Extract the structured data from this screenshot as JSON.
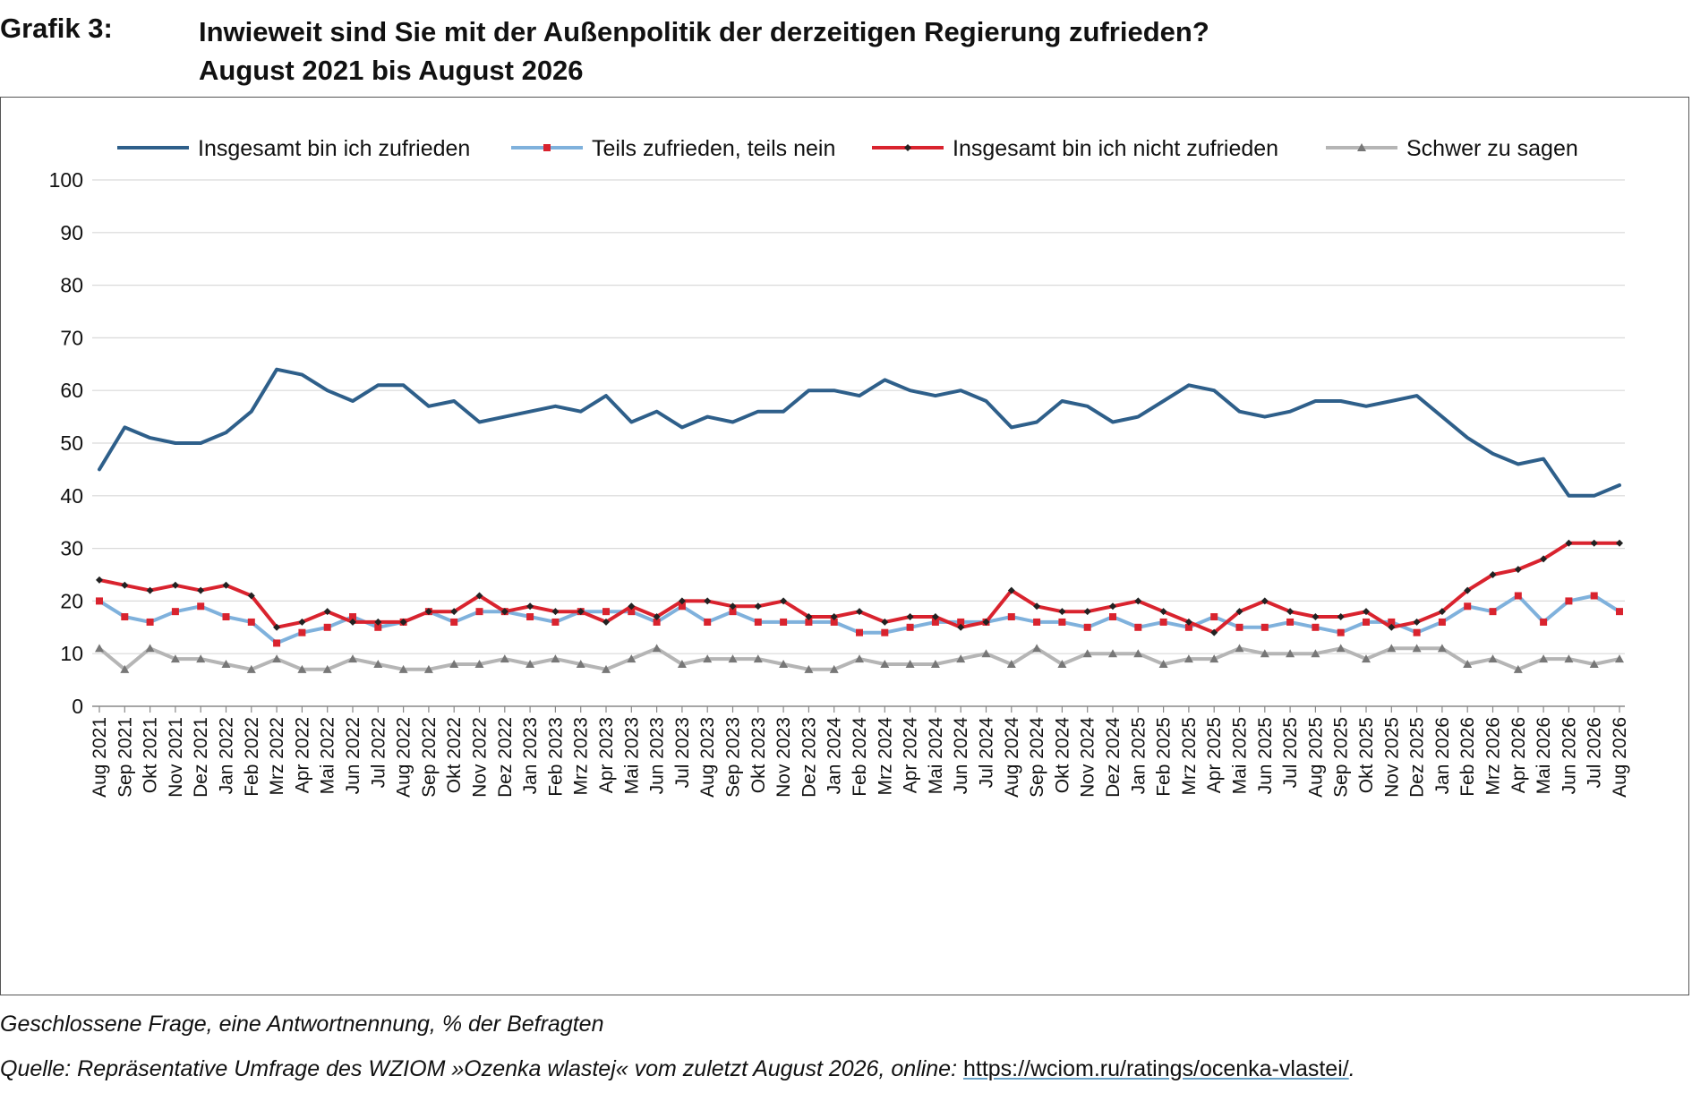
{
  "header": {
    "label": "Grafik 3:",
    "title_line1": "Inwieweit sind Sie mit der Außenpolitik der derzeitigen Regierung zufrieden?",
    "title_line2": "August 2021 bis August 2026"
  },
  "footnote": {
    "note": "Geschlossene Frage, eine Antwortnennung, % der Befragten",
    "source_prefix": "Quelle: Repräsentative Umfrage des WZIOM »Ozenka wlastej« vom zuletzt August 2026, online: ",
    "source_link": "https://wciom.ru/ratings/ocenka-vlastei/",
    "source_suffix": "."
  },
  "chart_data": {
    "type": "line",
    "title": "",
    "xlabel": "",
    "ylabel": "",
    "ylim": [
      0,
      100
    ],
    "yticks": [
      0,
      10,
      20,
      30,
      40,
      50,
      60,
      70,
      80,
      90,
      100
    ],
    "grid": true,
    "legend_position": "top",
    "categories": [
      "Aug 2021",
      "Sep 2021",
      "Okt 2021",
      "Nov 2021",
      "Dez 2021",
      "Jan 2022",
      "Feb 2022",
      "Mrz 2022",
      "Apr 2022",
      "Mai 2022",
      "Jun 2022",
      "Jul 2022",
      "Aug 2022",
      "Sep 2022",
      "Okt 2022",
      "Nov 2022",
      "Dez 2022",
      "Jan 2023",
      "Feb 2023",
      "Mrz 2023",
      "Apr 2023",
      "Mai 2023",
      "Jun 2023",
      "Jul 2023",
      "Aug 2023",
      "Sep 2023",
      "Okt 2023",
      "Nov 2023",
      "Dez 2023",
      "Jan 2024",
      "Feb 2024",
      "Mrz 2024",
      "Apr 2024",
      "Mai 2024",
      "Jun 2024",
      "Jul 2024",
      "Aug 2024",
      "Sep 2024",
      "Okt 2024",
      "Nov 2024",
      "Dez 2024",
      "Jan 2025",
      "Feb 2025",
      "Mrz 2025",
      "Apr 2025",
      "Mai 2025",
      "Jun 2025",
      "Jul 2025",
      "Aug 2025",
      "Sep 2025",
      "Okt 2025",
      "Nov 2025",
      "Dez 2025",
      "Jan 2026",
      "Feb 2026",
      "Mrz 2026",
      "Apr 2026",
      "Mai 2026",
      "Jun 2026",
      "Jul 2026",
      "Aug 2026"
    ],
    "series": [
      {
        "name": "Insgesamt bin ich zufrieden",
        "color": "#2e5f8a",
        "marker": "none",
        "values": [
          45,
          53,
          51,
          50,
          50,
          52,
          56,
          64,
          63,
          60,
          58,
          61,
          61,
          57,
          58,
          54,
          55,
          56,
          57,
          56,
          59,
          54,
          56,
          53,
          55,
          54,
          56,
          56,
          60,
          60,
          59,
          62,
          60,
          59,
          60,
          58,
          53,
          54,
          58,
          57,
          54,
          55,
          58,
          61,
          60,
          56,
          55,
          56,
          58,
          58,
          57,
          58,
          59,
          55,
          51,
          48,
          46,
          47,
          40,
          40,
          42
        ]
      },
      {
        "name": "Teils zufrieden, teils nein",
        "color": "#7fb1dc",
        "marker": "square",
        "marker_color": "#d9232e",
        "values": [
          20,
          17,
          16,
          18,
          19,
          17,
          16,
          12,
          14,
          15,
          17,
          15,
          16,
          18,
          16,
          18,
          18,
          17,
          16,
          18,
          18,
          18,
          16,
          19,
          16,
          18,
          16,
          16,
          16,
          16,
          14,
          14,
          15,
          16,
          16,
          16,
          17,
          16,
          16,
          15,
          17,
          15,
          16,
          15,
          17,
          15,
          15,
          16,
          15,
          14,
          16,
          16,
          14,
          16,
          19,
          18,
          21,
          16,
          20,
          21,
          18
        ]
      },
      {
        "name": "Insgesamt bin ich nicht zufrieden",
        "color": "#d9232e",
        "marker": "diamond",
        "marker_color": "#222222",
        "values": [
          24,
          23,
          22,
          23,
          22,
          23,
          21,
          15,
          16,
          18,
          16,
          16,
          16,
          18,
          18,
          21,
          18,
          19,
          18,
          18,
          16,
          19,
          17,
          20,
          20,
          19,
          19,
          20,
          17,
          17,
          18,
          16,
          17,
          17,
          15,
          16,
          22,
          19,
          18,
          18,
          19,
          20,
          18,
          16,
          14,
          18,
          20,
          18,
          17,
          17,
          18,
          15,
          16,
          18,
          22,
          25,
          26,
          28,
          31,
          31,
          31
        ]
      },
      {
        "name": "Schwer zu sagen",
        "color": "#b5b5b5",
        "marker": "triangle",
        "marker_color": "#777777",
        "values": [
          11,
          7,
          11,
          9,
          9,
          8,
          7,
          9,
          7,
          7,
          9,
          8,
          7,
          7,
          8,
          8,
          9,
          8,
          9,
          8,
          7,
          9,
          11,
          8,
          9,
          9,
          9,
          8,
          7,
          7,
          9,
          8,
          8,
          8,
          9,
          10,
          8,
          11,
          8,
          10,
          10,
          10,
          8,
          9,
          9,
          11,
          10,
          10,
          10,
          11,
          9,
          11,
          11,
          11,
          8,
          9,
          7,
          9,
          9,
          8,
          9
        ]
      }
    ]
  }
}
